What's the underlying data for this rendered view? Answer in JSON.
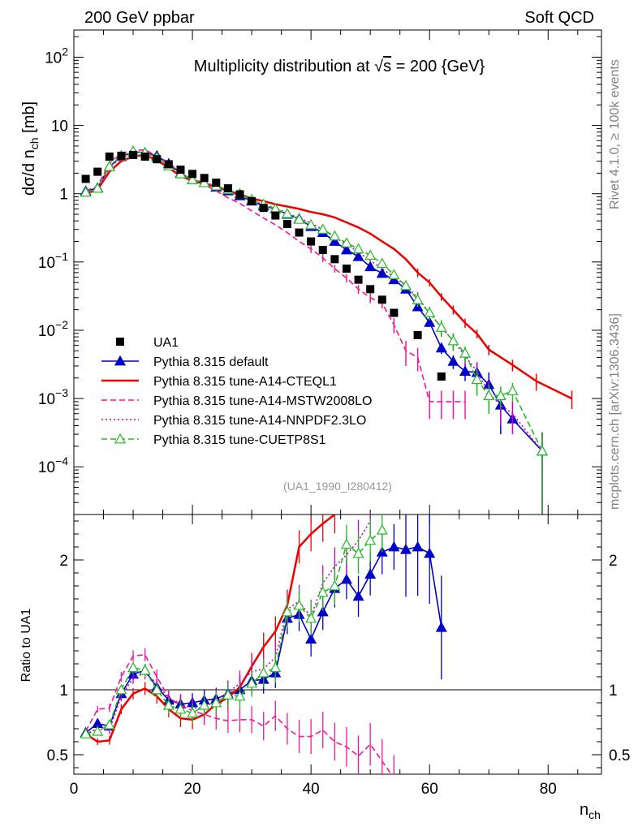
{
  "header": {
    "left": "200 GeV ppbar",
    "right": "Soft QCD"
  },
  "side": {
    "rivet": "Rivet 4.1.0, ≥ 100k events",
    "site": "mcplots.cern.ch [arXiv:1306.3436]"
  },
  "chart_data": {
    "type": "line",
    "title": "Multiplicity distribution at √s = 200 {GeV}",
    "title_pre": "Multiplicity distribution at ",
    "title_root": "√",
    "title_s": "s",
    "title_post": " = 200 {GeV}",
    "ylabel_main": "dσ/d n",
    "ylabel_sub": "ch",
    "ylabel_unit": " [mb]",
    "ylabel_ratio": "Ratio to UA1",
    "xlabel_main": "n",
    "xlabel_sub": "ch",
    "analysis_id": "(UA1_1990_I280412)",
    "xlim": [
      0,
      89
    ],
    "ylim_log": [
      2e-05,
      250
    ],
    "ratio_ylim": [
      0.35,
      2.35
    ],
    "main_yticks": [
      {
        "value": 0.0001,
        "base": "10",
        "exp": "−4"
      },
      {
        "value": 0.001,
        "base": "10",
        "exp": "−3"
      },
      {
        "value": 0.01,
        "base": "10",
        "exp": "−2"
      },
      {
        "value": 0.1,
        "base": "10",
        "exp": "−1"
      },
      {
        "value": 1,
        "base": "1",
        "exp": ""
      },
      {
        "value": 10,
        "base": "10",
        "exp": ""
      },
      {
        "value": 100,
        "base": "10",
        "exp": "2"
      }
    ],
    "ratio_yticks": [
      {
        "value": 0.5,
        "label": "0.5"
      },
      {
        "value": 1,
        "label": "1"
      },
      {
        "value": 2,
        "label": "2"
      }
    ],
    "xticks": [
      {
        "value": 0,
        "label": "0"
      },
      {
        "value": 20,
        "label": "20"
      },
      {
        "value": 40,
        "label": "40"
      },
      {
        "value": 60,
        "label": "60"
      },
      {
        "value": 80,
        "label": "80"
      }
    ],
    "legend_position": "bottom-left",
    "data": {
      "name": "UA1",
      "color": "#000000",
      "x": [
        2,
        4,
        6,
        8,
        10,
        12,
        14,
        16,
        18,
        20,
        22,
        24,
        26,
        28,
        30,
        32,
        34,
        36,
        38,
        40,
        42,
        44,
        46,
        48,
        50,
        52,
        54,
        58,
        62
      ],
      "y": [
        1.65,
        2.1,
        3.5,
        3.6,
        3.7,
        3.5,
        3.2,
        2.7,
        2.25,
        1.95,
        1.7,
        1.45,
        1.2,
        0.98,
        0.78,
        0.62,
        0.48,
        0.36,
        0.27,
        0.2,
        0.15,
        0.11,
        0.08,
        0.055,
        0.04,
        0.028,
        0.018,
        0.0085,
        0.0021
      ]
    },
    "series": [
      {
        "name": "Pythia 8.315 default",
        "color": "#0000cc",
        "style": "solid",
        "marker": "triangle-filled",
        "x": [
          2,
          4,
          6,
          8,
          10,
          12,
          14,
          16,
          18,
          20,
          22,
          24,
          26,
          28,
          30,
          32,
          34,
          36,
          38,
          40,
          42,
          44,
          46,
          48,
          50,
          52,
          54,
          56,
          58,
          60,
          62,
          64,
          66,
          68,
          70,
          72,
          74,
          79
        ],
        "y": [
          1.09,
          1.22,
          2.5,
          3.5,
          4.1,
          4.0,
          3.6,
          2.75,
          2.0,
          1.6,
          1.45,
          1.25,
          1.1,
          0.93,
          0.78,
          0.66,
          0.6,
          0.5,
          0.43,
          0.33,
          0.27,
          0.2,
          0.15,
          0.12,
          0.085,
          0.068,
          0.055,
          0.04,
          0.022,
          0.013,
          0.0055,
          0.0035,
          0.0025,
          0.0024,
          0.0016,
          0.0008,
          0.0005,
          0.00017
        ],
        "yerr": [
          0,
          0,
          0,
          0,
          0,
          0,
          0,
          0,
          0,
          0,
          0,
          0,
          0,
          0,
          0,
          0,
          0,
          0,
          0,
          0,
          0,
          0,
          0,
          0,
          0.004,
          0.003,
          0.003,
          0.003,
          0.002,
          0.0015,
          0.001,
          0.0008,
          0.0007,
          0.0009,
          0.0008,
          0.0005,
          0,
          0.00015
        ],
        "ratio": [
          0.67,
          0.74,
          0.72,
          0.97,
          1.12,
          1.15,
          1.02,
          0.92,
          0.89,
          0.9,
          0.92,
          0.93,
          0.97,
          1.0,
          1.07,
          1.08,
          1.13,
          1.55,
          1.58,
          1.39,
          1.6,
          1.78,
          1.85,
          1.72,
          1.89,
          2.06,
          2.1,
          2.08,
          2.1,
          2.05,
          1.48
        ]
      },
      {
        "name": "Pythia 8.315 tune-A14-CTEQL1",
        "color": "#ee0000",
        "style": "solid",
        "marker": "none",
        "x": [
          2,
          4,
          6,
          8,
          10,
          12,
          14,
          16,
          18,
          20,
          22,
          24,
          26,
          28,
          30,
          32,
          34,
          36,
          38,
          40,
          42,
          44,
          46,
          48,
          50,
          52,
          54,
          56,
          58,
          60,
          62,
          64,
          66,
          68,
          70,
          74,
          78,
          84
        ],
        "y": [
          1.0,
          1.15,
          2.1,
          3.0,
          3.5,
          3.7,
          3.1,
          2.4,
          1.8,
          1.55,
          1.4,
          1.25,
          1.1,
          0.98,
          0.85,
          0.78,
          0.7,
          0.65,
          0.6,
          0.54,
          0.5,
          0.45,
          0.38,
          0.32,
          0.26,
          0.2,
          0.155,
          0.11,
          0.07,
          0.05,
          0.031,
          0.02,
          0.0128,
          0.0089,
          0.0052,
          0.0031,
          0.0018,
          0.001
        ],
        "yerr": [
          0,
          0,
          0,
          0,
          0,
          0,
          0,
          0,
          0,
          0,
          0,
          0,
          0,
          0,
          0,
          0,
          0,
          0,
          0,
          0,
          0,
          0,
          0,
          0,
          0,
          0,
          0,
          0,
          0.01,
          0.006,
          0.004,
          0.003,
          0.002,
          0.0013,
          0.0009,
          0.0006,
          0.0005,
          0.0003
        ],
        "ratio": [
          0.66,
          0.6,
          0.61,
          0.85,
          0.97,
          1.01,
          0.95,
          0.85,
          0.78,
          0.77,
          0.81,
          0.89,
          0.94,
          1.02,
          1.18,
          1.33,
          1.45,
          1.65,
          2.1,
          2.2,
          2.28,
          2.35
        ]
      },
      {
        "name": "Pythia 8.315 tune-A14-MSTW2008LO",
        "color": "#ff1493",
        "style": "dashed",
        "marker": "none",
        "x": [
          2,
          4,
          6,
          8,
          10,
          12,
          14,
          16,
          18,
          20,
          22,
          24,
          26,
          28,
          30,
          32,
          34,
          36,
          38,
          40,
          42,
          44,
          46,
          48,
          50,
          52,
          54,
          56,
          58,
          60,
          62,
          64,
          66
        ],
        "y": [
          1.1,
          1.3,
          2.8,
          3.9,
          4.3,
          4.4,
          3.6,
          2.85,
          2.0,
          1.55,
          1.35,
          1.1,
          0.87,
          0.72,
          0.56,
          0.44,
          0.35,
          0.27,
          0.2,
          0.155,
          0.115,
          0.08,
          0.058,
          0.04,
          0.03,
          0.025,
          0.012,
          0.005,
          0.004,
          0.0009,
          0.0009,
          0.0009,
          0.0009
        ],
        "yerr": [
          0,
          0,
          0,
          0,
          0,
          0,
          0,
          0,
          0,
          0,
          0,
          0,
          0,
          0,
          0,
          0,
          0,
          0,
          0,
          0.02,
          0.015,
          0.01,
          0.008,
          0.006,
          0.005,
          0.004,
          0.003,
          0.002,
          0.0015,
          0.0004,
          0.0004,
          0.0004,
          0.0004
        ],
        "ratio": [
          0.68,
          0.85,
          0.86,
          1.1,
          1.26,
          1.27,
          1.1,
          0.94,
          0.88,
          0.84,
          0.81,
          0.78,
          0.76,
          0.77,
          0.77,
          0.72,
          0.8,
          0.7,
          0.64,
          0.64,
          0.69,
          0.6,
          0.56,
          0.49,
          0.58,
          0.45,
          0.32
        ]
      },
      {
        "name": "Pythia 8.315 tune-A14-NNPDF2.3LO",
        "color": "#cc00cc",
        "style": "dotted",
        "marker": "none",
        "x": [
          2,
          4,
          6,
          8,
          10,
          12,
          14,
          16,
          18,
          20,
          22,
          24,
          26,
          28,
          30,
          32,
          34,
          36,
          38,
          40,
          42,
          44,
          46,
          48,
          50,
          52,
          54,
          56,
          58,
          60,
          62,
          64,
          66,
          68,
          70,
          72,
          74,
          79
        ],
        "y": [
          1.0,
          1.15,
          2.4,
          3.4,
          4.0,
          4.1,
          3.5,
          2.7,
          2.0,
          1.6,
          1.45,
          1.3,
          1.1,
          0.95,
          0.8,
          0.7,
          0.62,
          0.52,
          0.44,
          0.37,
          0.3,
          0.23,
          0.18,
          0.14,
          0.105,
          0.08,
          0.06,
          0.045,
          0.03,
          0.018,
          0.011,
          0.007,
          0.0042,
          0.0025,
          0.0012,
          0.0008,
          0.0006,
          0.00017
        ],
        "yerr": [
          0,
          0,
          0,
          0,
          0,
          0,
          0,
          0,
          0,
          0,
          0,
          0,
          0,
          0,
          0,
          0,
          0,
          0,
          0,
          0,
          0,
          0,
          0,
          0,
          0,
          0,
          0,
          0,
          0.006,
          0.004,
          0.003,
          0.002,
          0.0012,
          0.0009,
          0.0006,
          0.0004,
          0.0003,
          0.00015
        ],
        "ratio": [
          0.66,
          0.7,
          0.69,
          0.95,
          1.09,
          1.13,
          1.05,
          0.93,
          0.9,
          0.86,
          0.86,
          0.92,
          0.98,
          1.05,
          1.14,
          1.16,
          1.25,
          1.62,
          1.68,
          1.56,
          1.82,
          1.95,
          2.04,
          2.15,
          2.3
        ]
      },
      {
        "name": "Pythia 8.315 tune-CUETP8S1",
        "color": "#22bb22",
        "style": "dashed",
        "marker": "triangle-open",
        "x": [
          2,
          4,
          6,
          8,
          10,
          12,
          14,
          16,
          18,
          20,
          22,
          24,
          26,
          28,
          30,
          32,
          34,
          36,
          38,
          40,
          42,
          44,
          46,
          48,
          50,
          52,
          54,
          56,
          58,
          60,
          62,
          64,
          66,
          68,
          70,
          72,
          74,
          79
        ],
        "y": [
          1.05,
          1.2,
          2.5,
          3.6,
          4.2,
          4.0,
          3.4,
          2.55,
          1.95,
          1.6,
          1.45,
          1.3,
          1.15,
          1.0,
          0.82,
          0.7,
          0.6,
          0.51,
          0.42,
          0.35,
          0.3,
          0.24,
          0.19,
          0.155,
          0.125,
          0.095,
          0.065,
          0.045,
          0.028,
          0.018,
          0.011,
          0.007,
          0.0046,
          0.0019,
          0.0011,
          0.0011,
          0.0013,
          0.00017
        ],
        "yerr": [
          0,
          0,
          0,
          0,
          0,
          0,
          0,
          0,
          0,
          0,
          0,
          0,
          0,
          0,
          0,
          0,
          0,
          0,
          0,
          0,
          0,
          0,
          0,
          0,
          0,
          0,
          0,
          0,
          0.006,
          0.004,
          0.003,
          0.002,
          0.0012,
          0.0008,
          0.0005,
          0.0004,
          0.0004,
          0.00015
        ],
        "ratio": [
          0.66,
          0.68,
          0.73,
          1.0,
          1.17,
          1.15,
          1.0,
          0.88,
          0.85,
          0.82,
          0.88,
          0.9,
          0.96,
          0.95,
          1.05,
          1.13,
          1.17,
          1.6,
          1.65,
          1.55,
          1.75,
          1.8,
          2.12,
          2.05,
          2.15,
          2.23
        ]
      }
    ]
  }
}
